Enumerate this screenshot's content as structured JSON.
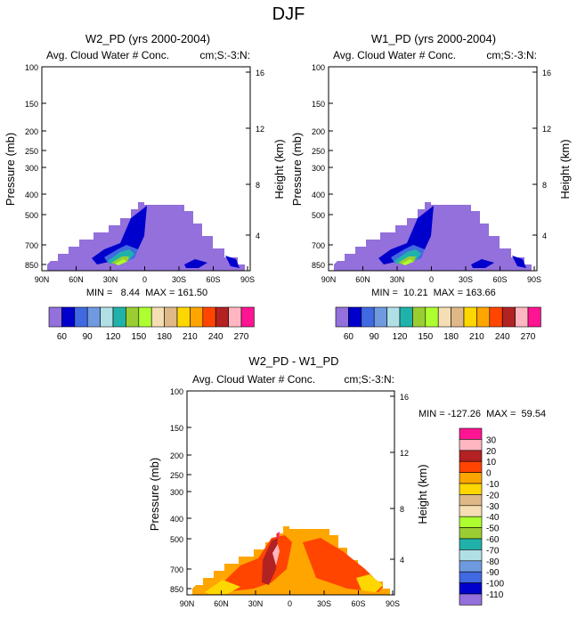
{
  "figure_title": "DJF",
  "colors": {
    "bar_top": [
      "#9370db",
      "#0000cd",
      "#4169e1",
      "#6f9ae0",
      "#b0e0e6",
      "#20b2aa",
      "#9acd32",
      "#adff2f",
      "#f5deb3",
      "#deb887",
      "#ffd700",
      "#ffa500",
      "#ff4500",
      "#b22222",
      "#ffb6c1",
      "#ff1493"
    ],
    "bar_diff": [
      "#9370db",
      "#0000cd",
      "#4169e1",
      "#6f9ae0",
      "#b0e0e6",
      "#20b2aa",
      "#9acd32",
      "#adff2f",
      "#f5deb3",
      "#deb887",
      "#ffd700",
      "#ffa500",
      "#ff4500",
      "#b22222",
      "#ffb6c1",
      "#ff1493"
    ]
  },
  "chart_data": [
    {
      "type": "heatmap",
      "panel": "W2_PD",
      "title": "W2_PD (yrs 2000-2004)",
      "left_title": "Avg. Cloud Water # Conc.",
      "right_title": "cm;S:-3:N:",
      "xlabel": "",
      "ylabel": "Pressure (mb)",
      "y2label": "Height (km)",
      "x_ticks": [
        "90N",
        "60N",
        "30N",
        "0",
        "30S",
        "60S",
        "90S"
      ],
      "y_ticks": [
        "100",
        "150",
        "200",
        "250",
        "300",
        "400",
        "500",
        "700",
        "850"
      ],
      "y2_ticks": [
        "16",
        "12",
        "8",
        "4"
      ],
      "stats": "MIN =   8.44  MAX = 161.50",
      "colorbar_labels": [
        "60",
        "90",
        "120",
        "150",
        "180",
        "210",
        "240",
        "270"
      ]
    },
    {
      "type": "heatmap",
      "panel": "W1_PD",
      "title": "W1_PD (yrs 2000-2004)",
      "left_title": "Avg. Cloud Water # Conc.",
      "right_title": "cm;S:-3:N:",
      "xlabel": "",
      "ylabel": "Pressure (mb)",
      "y2label": "Height (km)",
      "x_ticks": [
        "90N",
        "60N",
        "30N",
        "0",
        "30S",
        "60S",
        "90S"
      ],
      "y_ticks": [
        "100",
        "150",
        "200",
        "250",
        "300",
        "400",
        "500",
        "700",
        "850"
      ],
      "y2_ticks": [
        "16",
        "12",
        "8",
        "4"
      ],
      "stats": "MIN =  10.21  MAX = 163.66",
      "colorbar_labels": [
        "60",
        "90",
        "120",
        "150",
        "180",
        "210",
        "240",
        "270"
      ]
    },
    {
      "type": "heatmap",
      "panel": "W2_PD - W1_PD",
      "title": "W2_PD - W1_PD",
      "left_title": "Avg. Cloud Water # Conc.",
      "right_title": "cm;S:-3:N:",
      "xlabel": "",
      "ylabel": "Pressure (mb)",
      "y2label": "Height (km)",
      "x_ticks": [
        "90N",
        "60N",
        "30N",
        "0",
        "30S",
        "60S",
        "90S"
      ],
      "y_ticks": [
        "100",
        "150",
        "200",
        "250",
        "300",
        "400",
        "500",
        "700",
        "850"
      ],
      "y2_ticks": [
        "16",
        "12",
        "8",
        "4"
      ],
      "stats": "MIN = -127.26  MAX =  59.54",
      "colorbar_labels": [
        "30",
        "20",
        "10",
        "0",
        "-10",
        "-20",
        "-30",
        "-40",
        "-50",
        "-60",
        "-70",
        "-80",
        "-90",
        "-100",
        "-110"
      ]
    }
  ]
}
